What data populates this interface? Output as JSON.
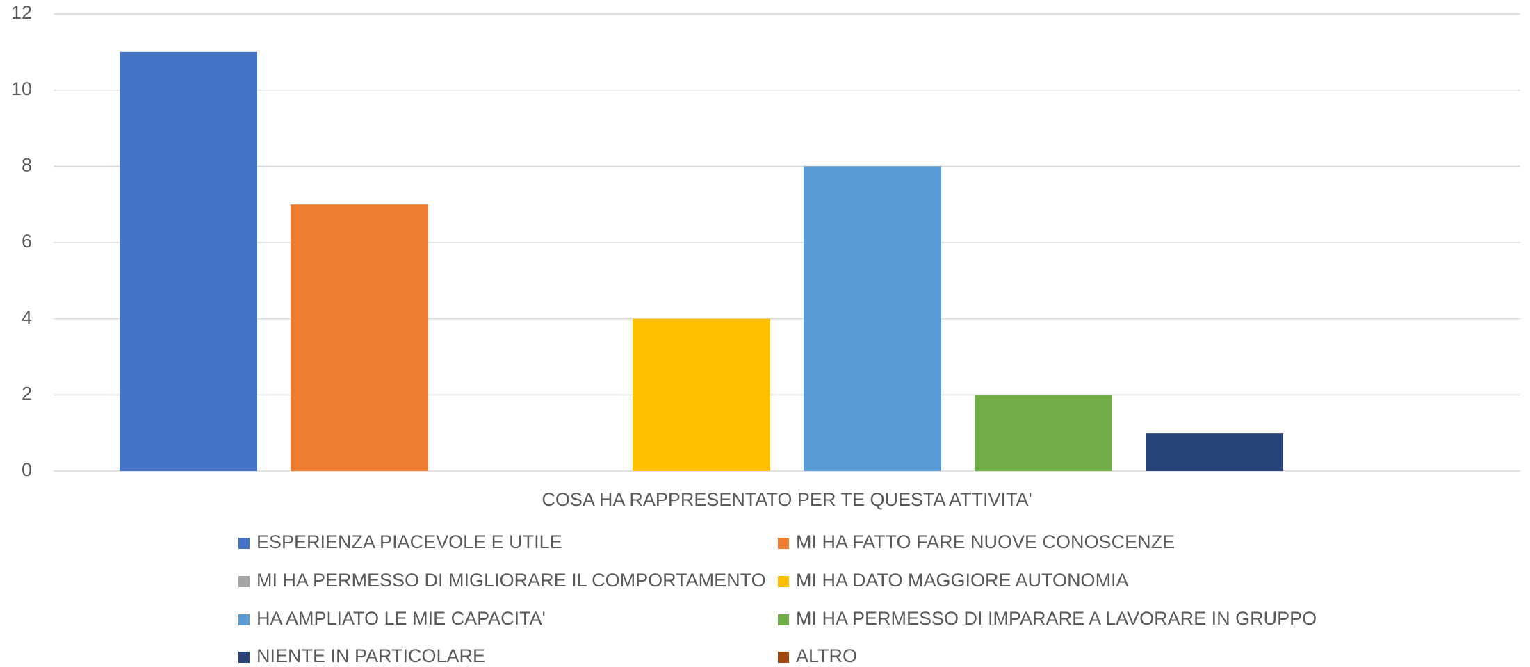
{
  "chart_data": {
    "type": "bar",
    "categories": [
      "COSA HA RAPPRESENTATO PER TE QUESTA ATTIVITA'"
    ],
    "series": [
      {
        "name": "ESPERIENZA PIACEVOLE E UTILE",
        "color": "#4472c4",
        "values": [
          11
        ]
      },
      {
        "name": "MI HA FATTO FARE NUOVE CONOSCENZE",
        "color": "#ed7d31",
        "values": [
          7
        ]
      },
      {
        "name": "MI HA PERMESSO DI MIGLIORARE IL COMPORTAMENTO",
        "color": "#a5a5a5",
        "values": [
          0
        ]
      },
      {
        "name": "MI HA DATO MAGGIORE AUTONOMIA",
        "color": "#ffc000",
        "values": [
          4
        ]
      },
      {
        "name": "HA AMPLIATO LE MIE CAPACITA'",
        "color": "#5b9bd5",
        "values": [
          8
        ]
      },
      {
        "name": "MI HA PERMESSO DI IMPARARE A LAVORARE IN GRUPPO",
        "color": "#70ad47",
        "values": [
          2
        ]
      },
      {
        "name": "NIENTE IN PARTICOLARE",
        "color": "#264478",
        "values": [
          1
        ]
      },
      {
        "name": "ALTRO",
        "color": "#9e480e",
        "values": [
          0
        ]
      }
    ],
    "ylim": [
      0,
      12
    ],
    "yticks": [
      0,
      2,
      4,
      6,
      8,
      10,
      12
    ],
    "grid": true,
    "legend": "bottom"
  }
}
